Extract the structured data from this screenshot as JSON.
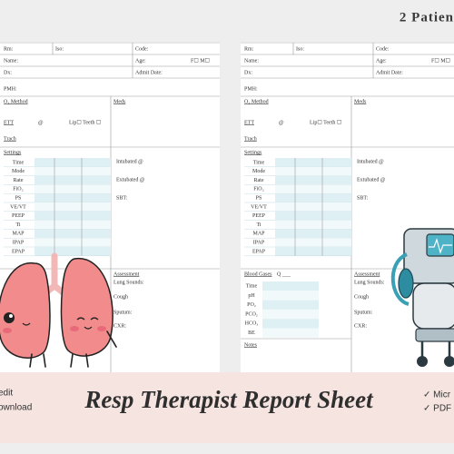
{
  "header": {
    "badge": "2 Patien"
  },
  "sheets": [
    {
      "rm": "Rm:",
      "iso": "Iso:",
      "code": "Code:",
      "name": "Name:",
      "age": "Age:",
      "sex": "F☐ M☐",
      "dx": "Dx:",
      "admit": "Admit Date:",
      "pmh": "PMH:",
      "o2": "O₂ Method",
      "meds": "Meds",
      "ett": "ETT",
      "at": "@",
      "lip": "Lip☐ Teeth ☐",
      "trach": "Trach",
      "settings": "Settings",
      "settings_rows": [
        "Time",
        "Mode",
        "Rate",
        "FiO₂",
        "PS",
        "VE/VT",
        "PEEP",
        "Ti",
        "MAP",
        "IPAP",
        "EPAP"
      ],
      "intubated": "Intubated @",
      "extubated": "Extubated @",
      "sbt": "SBT:",
      "assessment": "Assessment",
      "lung_sounds": "Lung Sounds:",
      "cough": "Cough",
      "sputum": "Sputum:",
      "cxr": "CXR:"
    },
    {
      "rm": "Rm:",
      "iso": "Iso:",
      "code": "Code:",
      "name": "Name:",
      "age": "Age:",
      "sex": "F☐ M☐",
      "dx": "Dx:",
      "admit": "Admit Date:",
      "pmh": "PMH:",
      "o2": "O₂ Method",
      "meds": "Meds",
      "ett": "ETT",
      "at": "@",
      "lip": "Lip☐ Teeth ☐",
      "trach": "Trach",
      "settings": "Settings",
      "settings_rows": [
        "Time",
        "Mode",
        "Rate",
        "FiO₂",
        "PS",
        "VE/VT",
        "PEEP",
        "Ti",
        "MAP",
        "IPAP",
        "EPAP"
      ],
      "intubated": "Intubated @",
      "extubated": "Extubated @",
      "sbt": "SBT:",
      "blood_gases": "Blood Gases",
      "q": "Q ___",
      "gas_rows": [
        "Time",
        "pH",
        "PO₂",
        "PCO₂",
        "HCO₃",
        "BE"
      ],
      "notes": "Notes",
      "assessment": "Assessment",
      "lung_sounds": "Lung Sounds:",
      "cough": "Cough",
      "sputum": "Sputum:",
      "cxr": "CXR:"
    }
  ],
  "banner": {
    "left": [
      "edit",
      "ownload"
    ],
    "title": "Resp Therapist Report Sheet",
    "right": [
      "✓ Micr",
      "✓ PDF"
    ]
  }
}
